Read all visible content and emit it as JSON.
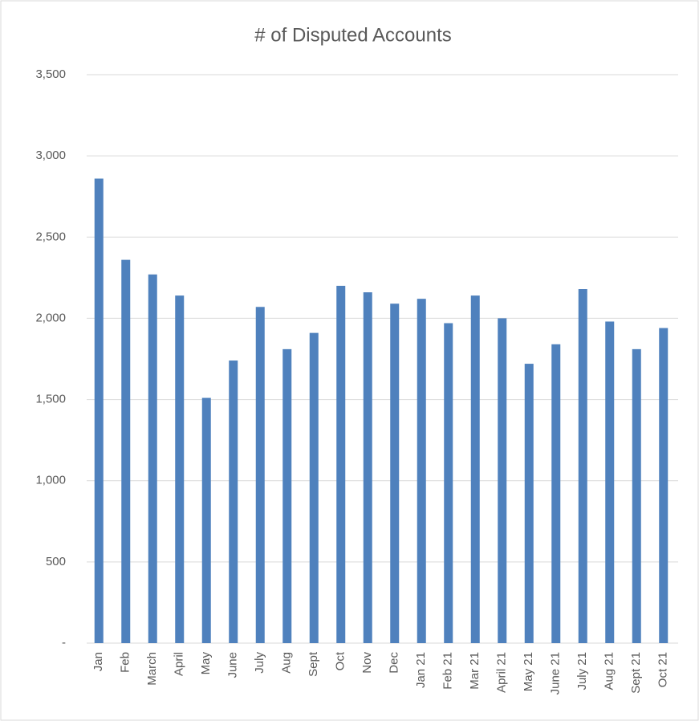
{
  "chart_data": {
    "type": "bar",
    "title": "# of Disputed Accounts",
    "categories": [
      "Jan",
      "Feb",
      "March",
      "April",
      "May",
      "June",
      "July",
      "Aug",
      "Sept",
      "Oct",
      "Nov",
      "Dec",
      "Jan 21",
      "Feb 21",
      "Mar 21",
      "April 21",
      "May 21",
      "June 21",
      "July 21",
      "Aug 21",
      "Sept 21",
      "Oct 21"
    ],
    "values": [
      2860,
      2360,
      2270,
      2140,
      1510,
      1740,
      2070,
      1810,
      1910,
      2200,
      2160,
      2090,
      2120,
      1970,
      2140,
      2000,
      1720,
      1840,
      2180,
      1980,
      1810,
      1940
    ],
    "color": "#4f81bd",
    "ylim": [
      0,
      3500
    ],
    "yticks": [
      {
        "value": 0,
        "label": "-"
      },
      500,
      {
        "value": 1000,
        "label": "1,000"
      },
      {
        "value": 1500,
        "label": "1,500"
      },
      {
        "value": 2000,
        "label": "2,000"
      },
      {
        "value": 2500,
        "label": "2,500"
      },
      {
        "value": 3000,
        "label": "3,000"
      },
      {
        "value": 3500,
        "label": "3,500"
      }
    ],
    "grid": true
  }
}
